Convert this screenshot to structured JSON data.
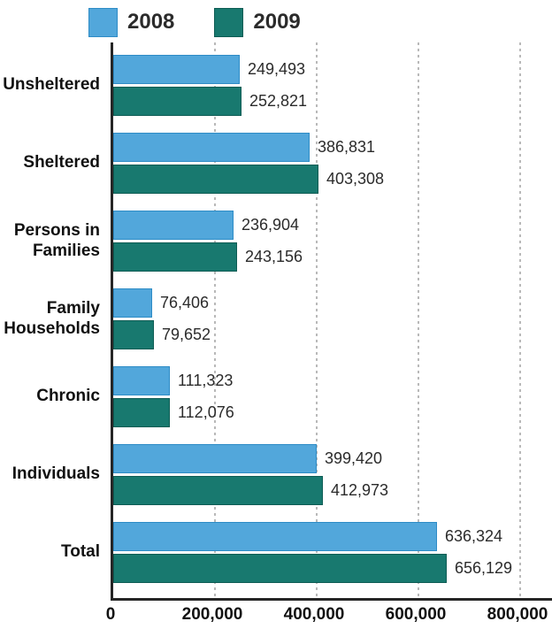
{
  "chart_data": {
    "type": "bar",
    "orientation": "horizontal",
    "title": "",
    "xlabel": "",
    "ylabel": "",
    "xlim": [
      0,
      800000
    ],
    "grid": "dotted-vertical",
    "legend_position": "top",
    "categories": [
      "Unsheltered",
      "Sheltered",
      "Persons in Families",
      "Family Households",
      "Chronic",
      "Individuals",
      "Total"
    ],
    "series": [
      {
        "name": "2008",
        "color": "#52a7db",
        "border_color": "#2e8cc6",
        "values": [
          249493,
          386831,
          236904,
          76406,
          111323,
          399420,
          636324
        ],
        "labels": [
          "249,493",
          "386,831",
          "236,904",
          "76,406",
          "111,323",
          "399,420",
          "636,324"
        ]
      },
      {
        "name": "2009",
        "color": "#18796f",
        "border_color": "#0e5c54",
        "values": [
          252821,
          403308,
          243156,
          79652,
          112076,
          412973,
          656129
        ],
        "labels": [
          "252,821",
          "403,308",
          "243,156",
          "79,652",
          "112,076",
          "412,973",
          "656,129"
        ]
      }
    ],
    "x_ticks": [
      {
        "label": "0",
        "value": 0
      },
      {
        "label": "200,000",
        "value": 200000
      },
      {
        "label": "400,000",
        "value": 400000
      },
      {
        "label": "600,000",
        "value": 600000
      },
      {
        "label": "800,000",
        "value": 800000
      }
    ]
  },
  "colors": {
    "axis": "#262626",
    "gridline": "#b9b9b9",
    "category_text": "#111111",
    "value_text": "#2b2b2b"
  }
}
